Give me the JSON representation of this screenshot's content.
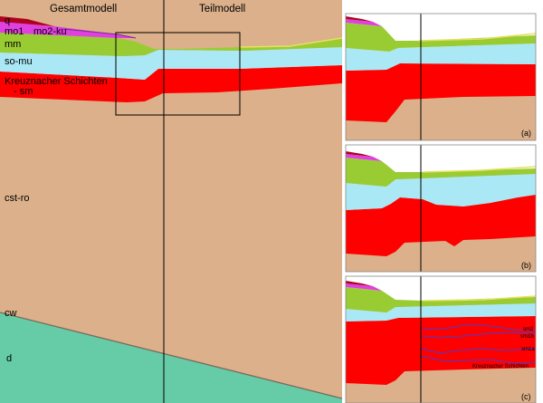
{
  "headers": {
    "gesamt": "Gesamtmodell",
    "teil": "Teilmodell"
  },
  "layers": {
    "q": "q",
    "mo1": "mo1",
    "mo2": "mo2-ku",
    "mm": "mm",
    "somu": "so-mu",
    "kreuz1": "Kreuznacher Schichten",
    "kreuz2": "- sm",
    "cst": "cst-ro",
    "cw": "cw",
    "d": "d"
  },
  "panels": {
    "a": "(a)",
    "b": "(b)",
    "c": "(c)"
  },
  "panel_c_labels": {
    "sm2": "sm2",
    "sm1b": "sm1b",
    "sm1a": "sm1a",
    "kreuz": "Kreuznacher Schichten"
  },
  "colors": {
    "tan": "#dbb08a",
    "green_sea": "#66cca8",
    "red": "#ff0000",
    "light_blue": "#aae8f5",
    "yellow_green": "#99cc33",
    "magenta": "#e040e0",
    "dark_red": "#b00020",
    "purple_line": "#4b3cc8"
  }
}
